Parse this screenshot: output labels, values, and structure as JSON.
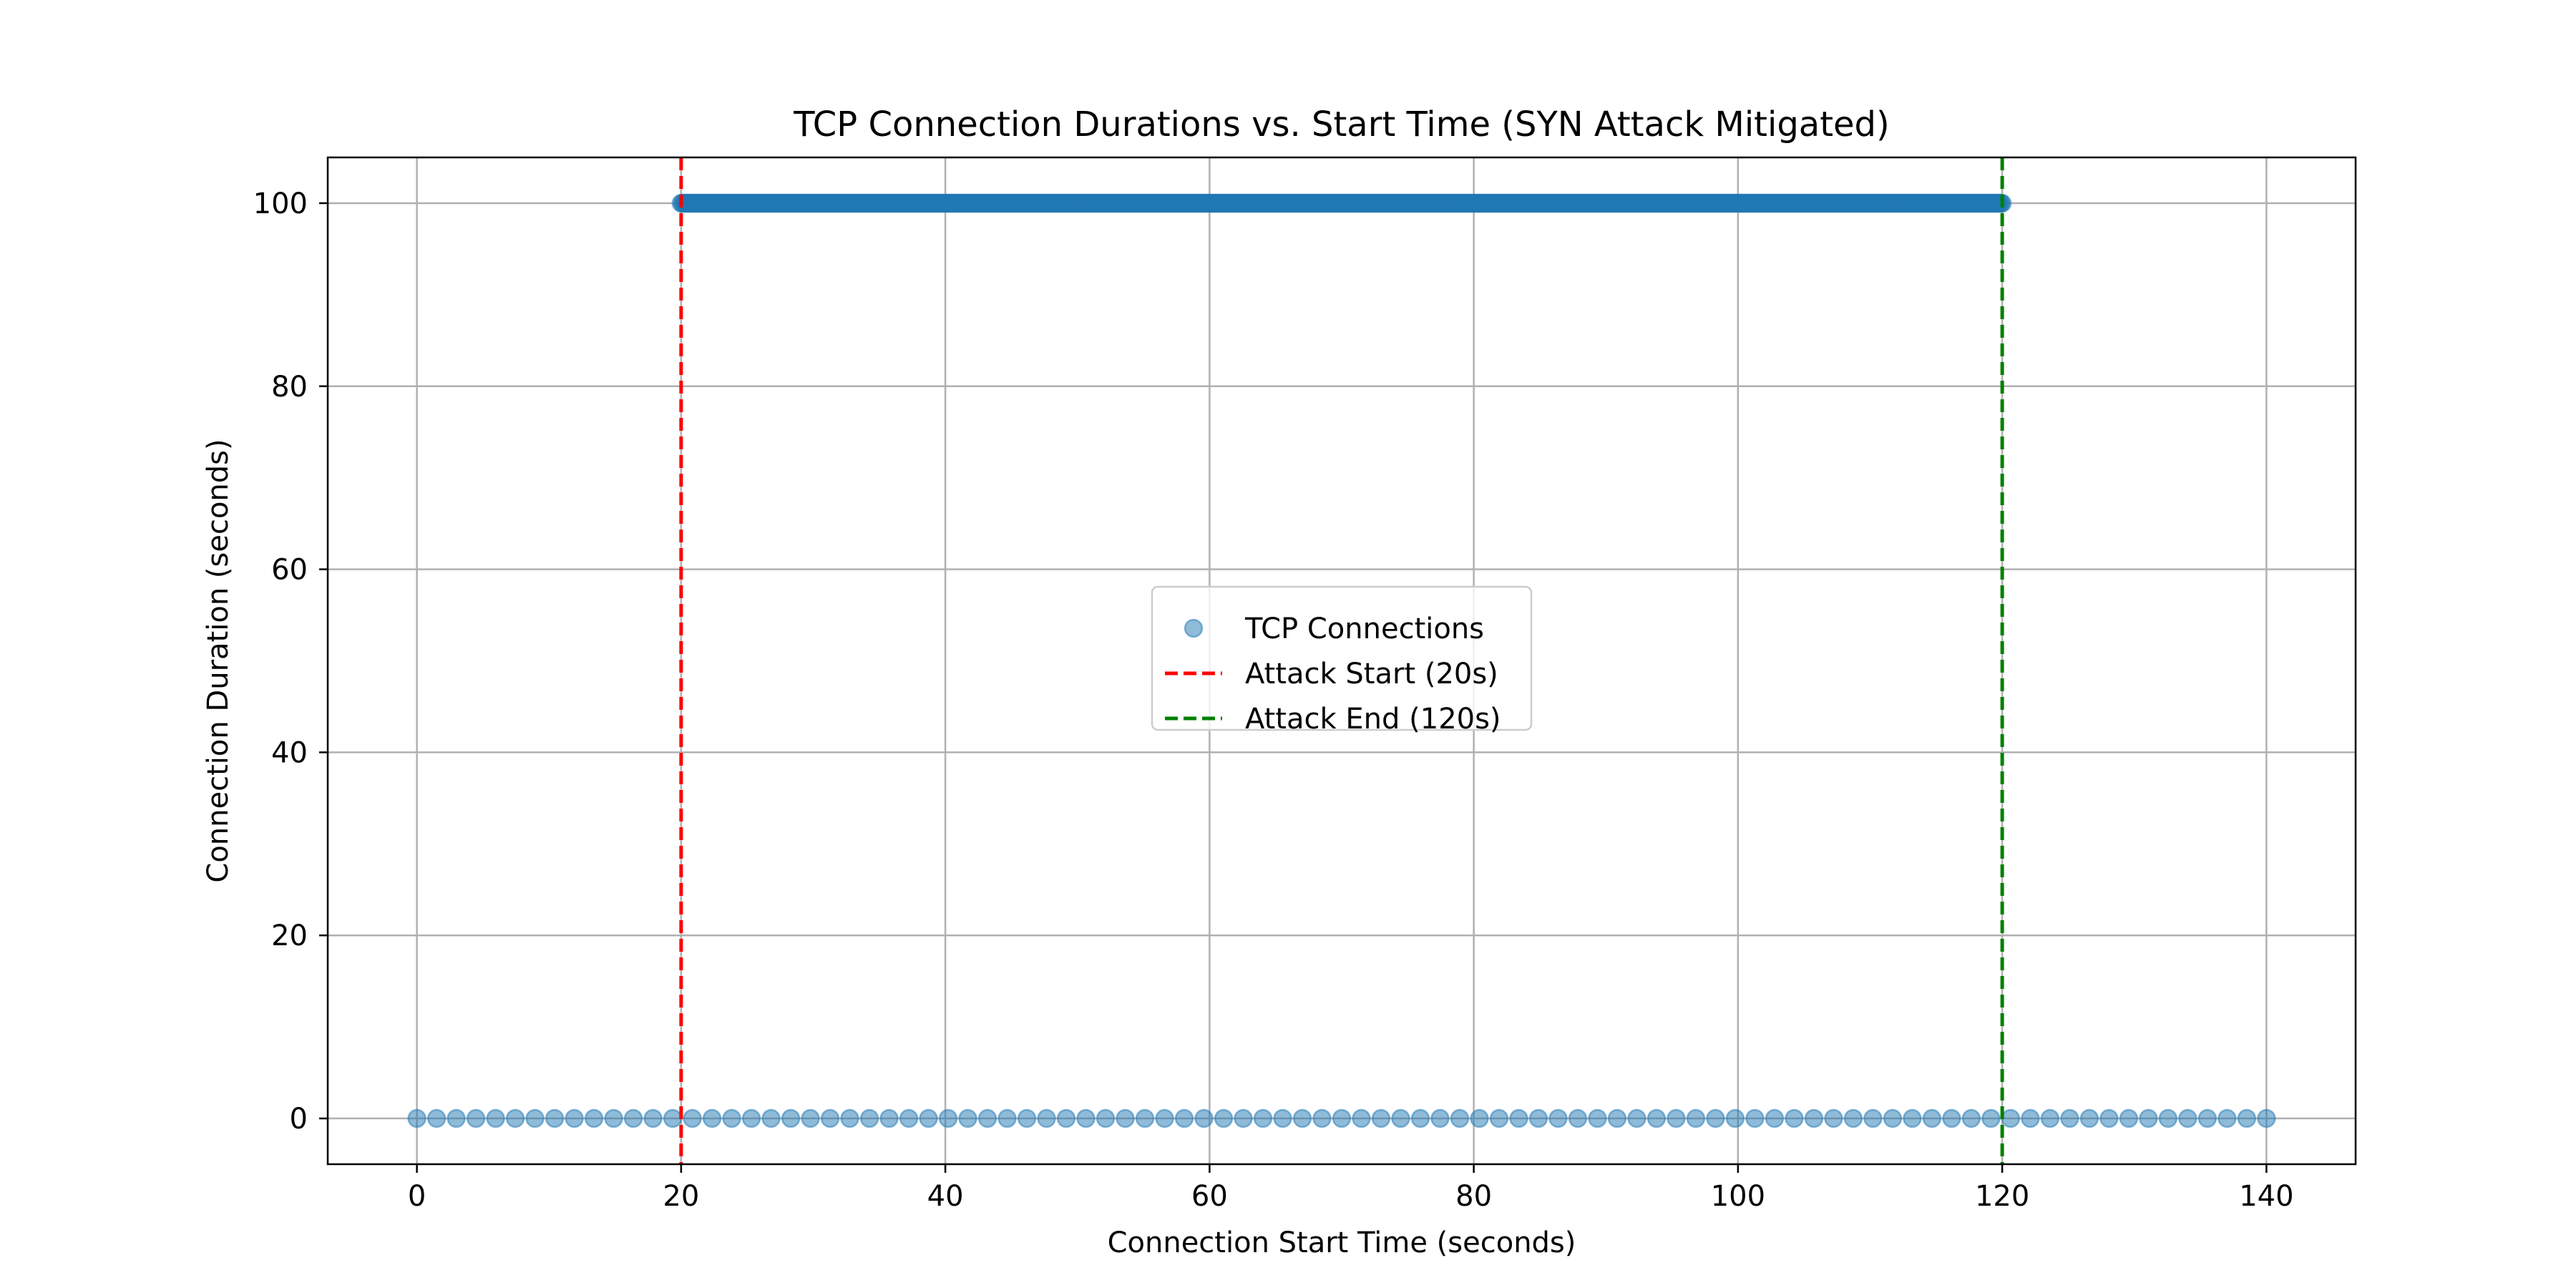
{
  "chart_data": {
    "type": "scatter",
    "title": "TCP Connection Durations vs. Start Time (SYN Attack Mitigated)",
    "xlabel": "Connection Start Time (seconds)",
    "ylabel": "Connection Duration (seconds)",
    "xlim": [
      -6.75,
      146.75
    ],
    "ylim": [
      -5,
      105
    ],
    "xticks": [
      0,
      20,
      40,
      60,
      80,
      100,
      120,
      140
    ],
    "yticks": [
      0,
      20,
      40,
      60,
      80,
      100
    ],
    "grid": true,
    "legend_position": "center",
    "series": [
      {
        "name": "TCP Connections",
        "kind": "scatter",
        "color": "#1f77b4",
        "alpha": 0.5,
        "groups": [
          {
            "x_start": 0,
            "x_end": 140,
            "count": 95,
            "y": 0
          },
          {
            "x_start": 20,
            "x_end": 120,
            "count": 1000,
            "y": 100
          }
        ]
      },
      {
        "name": "Attack Start (20s)",
        "kind": "vline",
        "x": 20,
        "color": "#ff0000",
        "linestyle": "dashed"
      },
      {
        "name": "Attack End (120s)",
        "kind": "vline",
        "x": 120,
        "color": "#008000",
        "linestyle": "dashed"
      }
    ]
  }
}
